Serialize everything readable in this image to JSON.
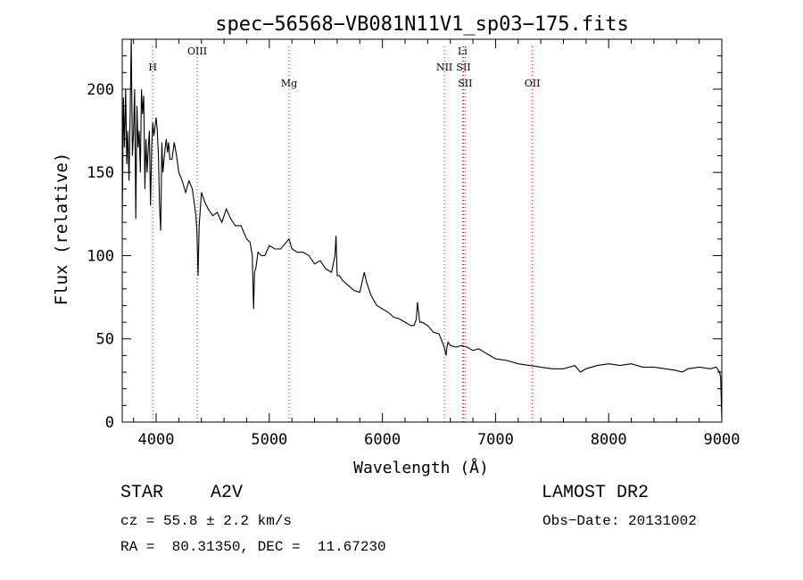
{
  "chart_data": {
    "type": "line",
    "title": "spec−56568−VB081N11V1_sp03−175.fits",
    "xlabel": "Wavelength (Å)",
    "ylabel": "Flux (relative)",
    "xlim": [
      3700,
      9000
    ],
    "ylim": [
      0,
      230
    ],
    "xticks": [
      4000,
      5000,
      6000,
      7000,
      8000,
      9000
    ],
    "yticks": [
      0,
      50,
      100,
      150,
      200
    ],
    "grid": false,
    "line_color": "#000000",
    "marker_color": "#ff0000",
    "lines": [
      {
        "label": "H",
        "x": 3970,
        "row": 1
      },
      {
        "label": "OIII",
        "x": 4363,
        "row": 0
      },
      {
        "label": "Mg",
        "x": 5175,
        "row": 2
      },
      {
        "label": "NII",
        "x": 6548,
        "row": 1
      },
      {
        "label": "Li",
        "x": 6708,
        "row": 0
      },
      {
        "label": "SII",
        "x": 6717,
        "row": 1
      },
      {
        "label": "SII",
        "x": 6731,
        "row": 2
      },
      {
        "label": "OII",
        "x": 7325,
        "row": 2
      }
    ],
    "spectrum": {
      "x": [
        3700,
        3710,
        3720,
        3730,
        3740,
        3750,
        3760,
        3770,
        3780,
        3790,
        3800,
        3810,
        3820,
        3830,
        3840,
        3850,
        3860,
        3870,
        3880,
        3890,
        3900,
        3910,
        3920,
        3930,
        3940,
        3950,
        3960,
        3970,
        3980,
        3990,
        4000,
        4010,
        4020,
        4030,
        4040,
        4050,
        4060,
        4070,
        4080,
        4090,
        4100,
        4110,
        4120,
        4140,
        4160,
        4180,
        4200,
        4230,
        4260,
        4290,
        4320,
        4340,
        4350,
        4360,
        4370,
        4380,
        4400,
        4430,
        4460,
        4500,
        4540,
        4580,
        4620,
        4660,
        4700,
        4750,
        4800,
        4830,
        4850,
        4861,
        4870,
        4880,
        4900,
        4930,
        4960,
        5000,
        5050,
        5100,
        5150,
        5175,
        5200,
        5250,
        5300,
        5350,
        5400,
        5450,
        5500,
        5550,
        5580,
        5590,
        5600,
        5620,
        5650,
        5700,
        5750,
        5800,
        5840,
        5860,
        5880,
        5900,
        5950,
        6000,
        6050,
        6100,
        6150,
        6200,
        6250,
        6280,
        6300,
        6310,
        6330,
        6350,
        6400,
        6450,
        6500,
        6530,
        6550,
        6563,
        6570,
        6580,
        6600,
        6650,
        6700,
        6750,
        6800,
        6850,
        6900,
        6950,
        7000,
        7100,
        7200,
        7300,
        7400,
        7500,
        7600,
        7700,
        7750,
        7800,
        7900,
        8000,
        8100,
        8200,
        8300,
        8400,
        8500,
        8600,
        8650,
        8700,
        8800,
        8900,
        8950,
        8980,
        8990,
        9000
      ],
      "y": [
        120,
        195,
        165,
        200,
        155,
        175,
        145,
        185,
        230,
        160,
        175,
        200,
        122,
        190,
        165,
        175,
        150,
        200,
        185,
        196,
        140,
        170,
        150,
        165,
        175,
        130,
        165,
        180,
        172,
        178,
        183,
        175,
        160,
        130,
        115,
        168,
        150,
        158,
        165,
        170,
        162,
        168,
        158,
        158,
        168,
        160,
        150,
        145,
        138,
        145,
        140,
        130,
        125,
        115,
        88,
        118,
        138,
        132,
        128,
        124,
        126,
        120,
        128,
        122,
        118,
        118,
        110,
        108,
        100,
        68,
        90,
        92,
        102,
        100,
        100,
        106,
        104,
        104,
        108,
        110,
        104,
        102,
        102,
        100,
        95,
        97,
        92,
        90,
        100,
        112,
        88,
        88,
        85,
        82,
        79,
        78,
        90,
        84,
        80,
        76,
        70,
        68,
        66,
        63,
        62,
        60,
        58,
        58,
        62,
        72,
        60,
        60,
        58,
        54,
        53,
        48,
        44,
        40,
        45,
        48,
        46,
        45,
        46,
        45,
        43,
        44,
        42,
        40,
        38,
        37,
        35,
        34,
        33,
        32,
        32,
        34,
        30,
        32,
        34,
        35,
        34,
        35,
        33,
        33,
        32,
        31,
        30,
        32,
        33,
        32,
        33,
        30,
        27,
        2
      ]
    }
  },
  "info": {
    "object_type": "STAR",
    "subclass": "A2V",
    "survey": "LAMOST DR2",
    "cz": "cz = 55.8 ± 2.2 km/s",
    "obs_date": "Obs−Date: 20131002",
    "coords": "RA =  80.31350, DEC =  11.67230"
  }
}
